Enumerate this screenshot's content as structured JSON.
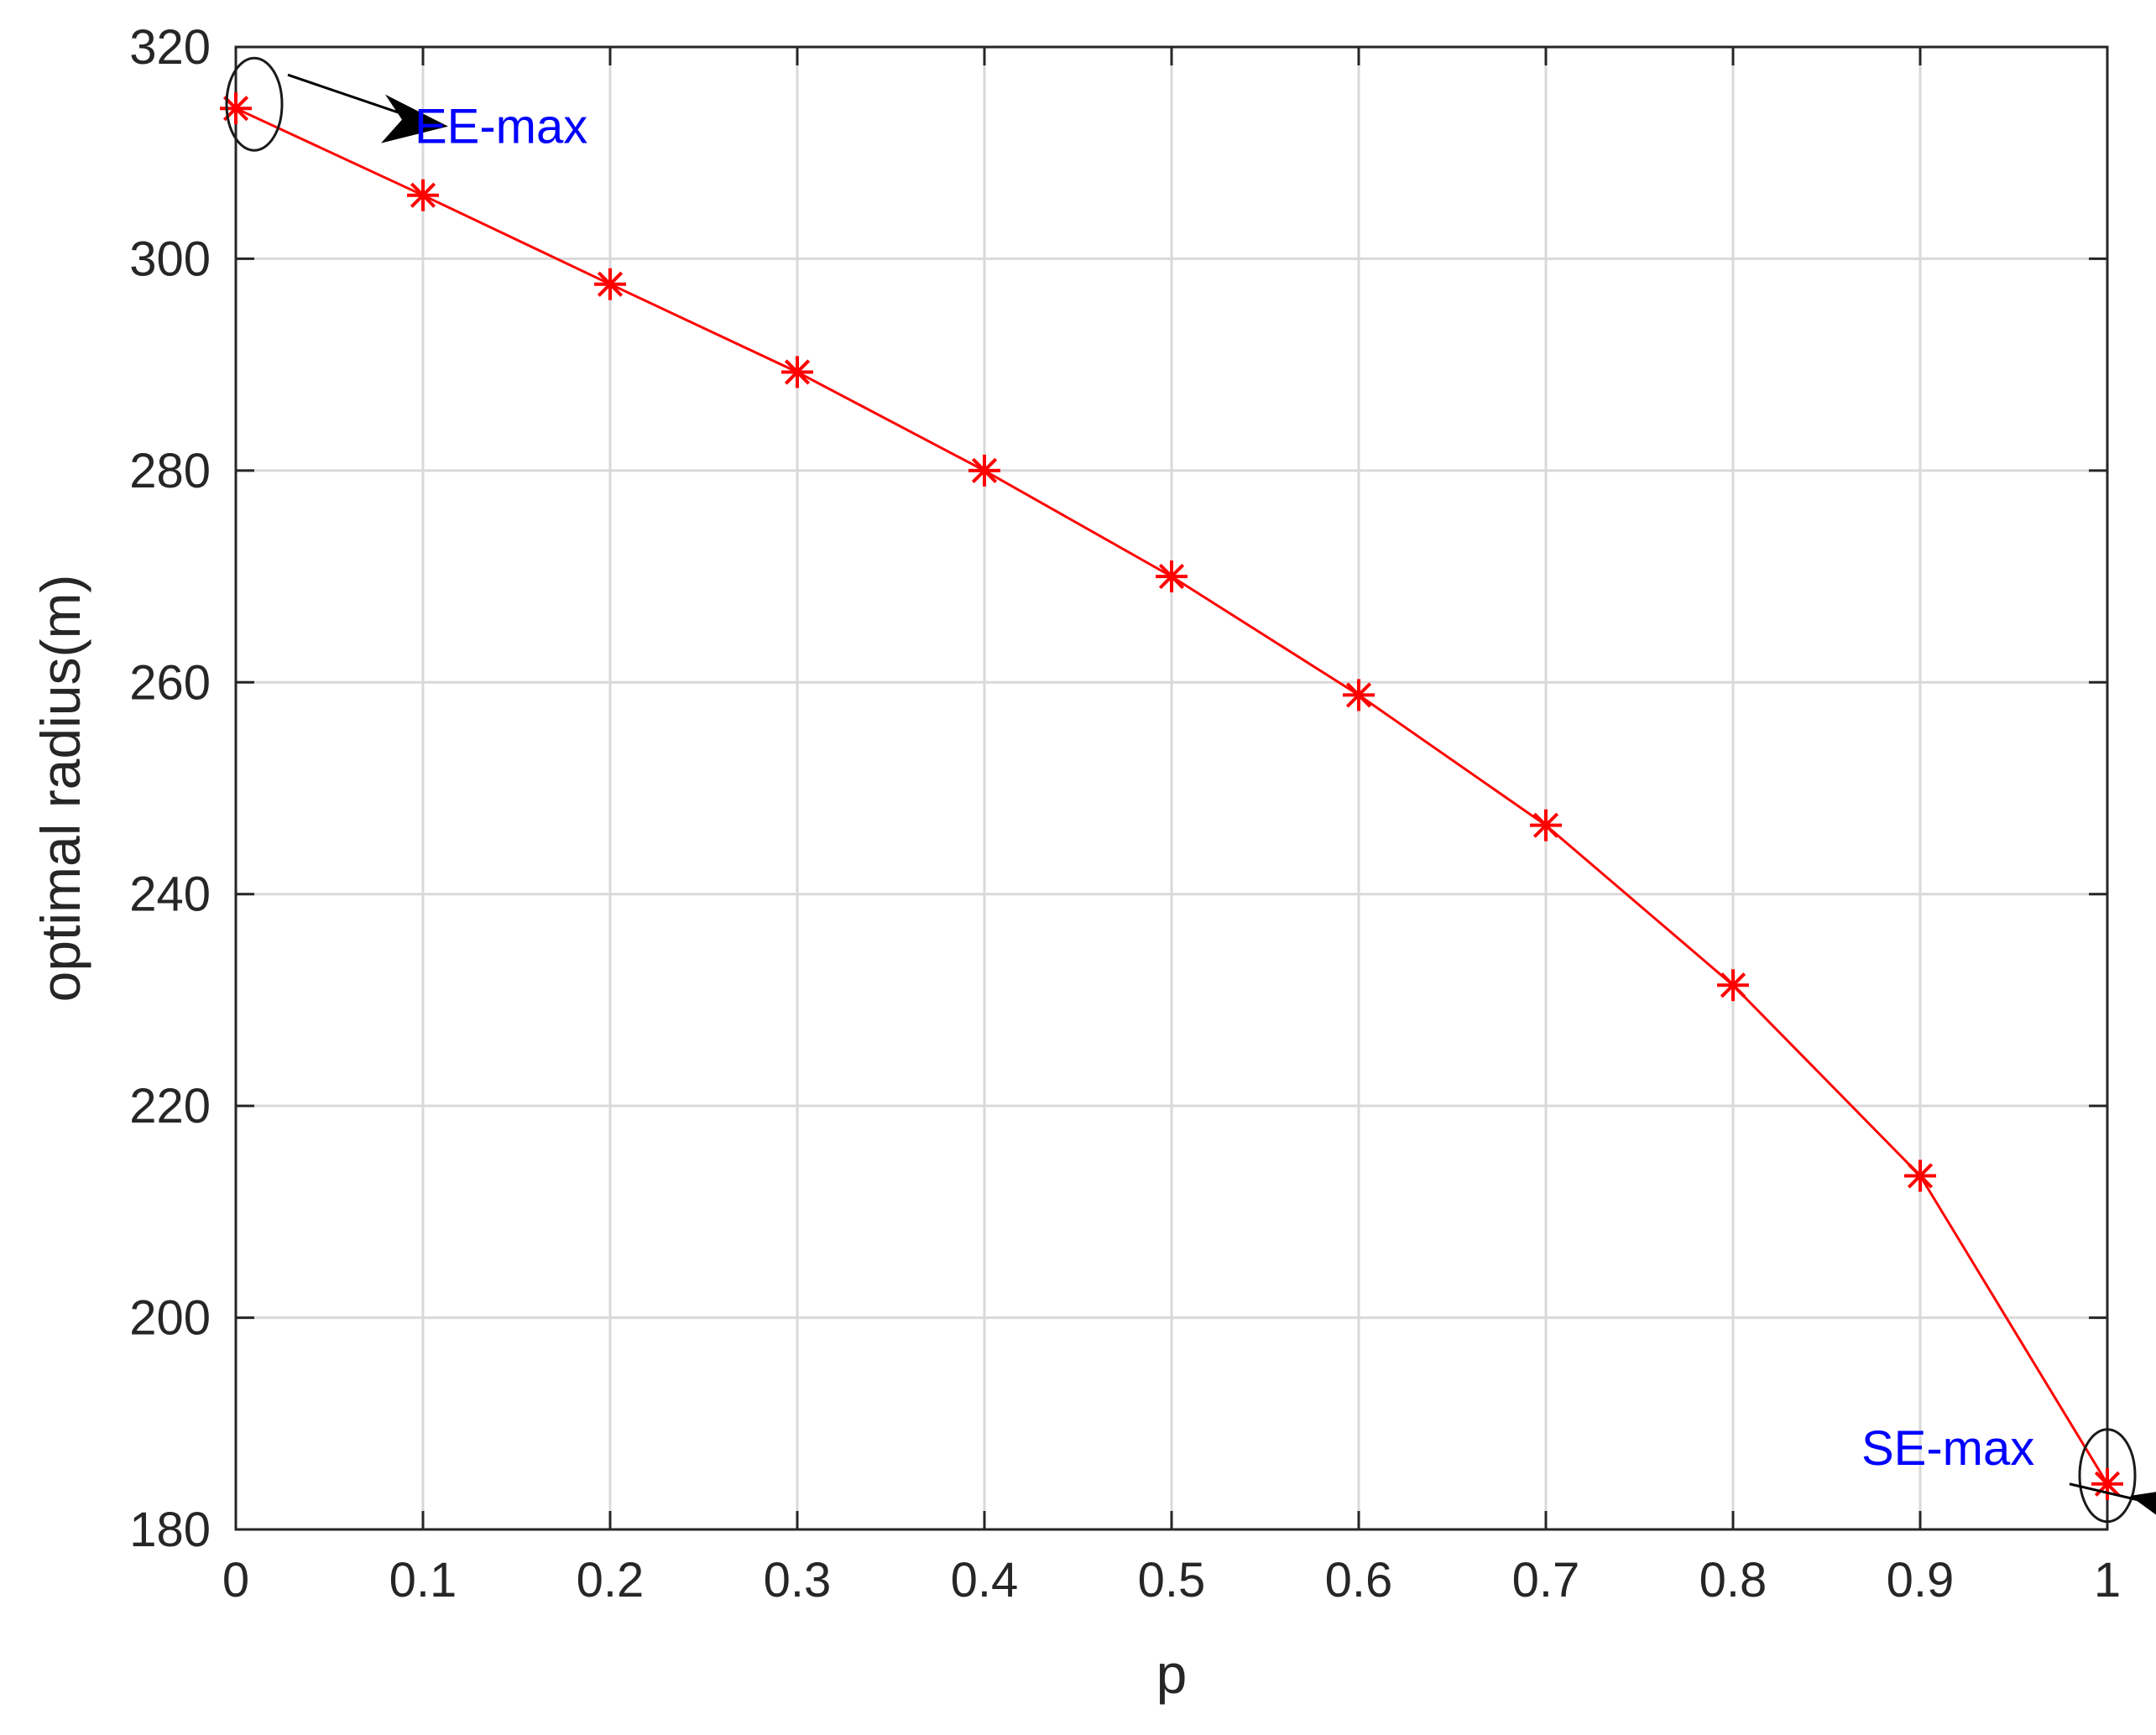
{
  "chart_data": {
    "type": "line",
    "xlabel": "p",
    "ylabel": "optimal radius(m)",
    "xlim": [
      0,
      1
    ],
    "ylim": [
      180,
      320
    ],
    "grid": true,
    "xticks": [
      0,
      0.1,
      0.2,
      0.3,
      0.4,
      0.5,
      0.6,
      0.7,
      0.8,
      0.9,
      1
    ],
    "xtick_labels": [
      "0",
      "0.1",
      "0.2",
      "0.3",
      "0.4",
      "0.5",
      "0.6",
      "0.7",
      "0.8",
      "0.9",
      "1"
    ],
    "yticks": [
      180,
      200,
      220,
      240,
      260,
      280,
      300,
      320
    ],
    "ytick_labels": [
      "180",
      "200",
      "220",
      "240",
      "260",
      "280",
      "300",
      "320"
    ],
    "series": [
      {
        "color": "#ff0000",
        "marker": "asterisk",
        "x": [
          0,
          0.1,
          0.2,
          0.3,
          0.4,
          0.5,
          0.6,
          0.7,
          0.8,
          0.9,
          1
        ],
        "y": [
          314.2,
          306.0,
          297.6,
          289.3,
          280.0,
          270.0,
          258.8,
          246.5,
          231.4,
          213.4,
          184.3
        ]
      }
    ],
    "annotations": [
      {
        "text": "EE-max",
        "color": "#0000ff",
        "point": [
          0,
          314.2
        ],
        "label_anchor": [
          0.1,
          312.5
        ]
      },
      {
        "text": "SE-max",
        "color": "#0000ff",
        "point": [
          1,
          184.3
        ],
        "label_anchor": [
          0.9,
          186.5
        ]
      }
    ]
  }
}
